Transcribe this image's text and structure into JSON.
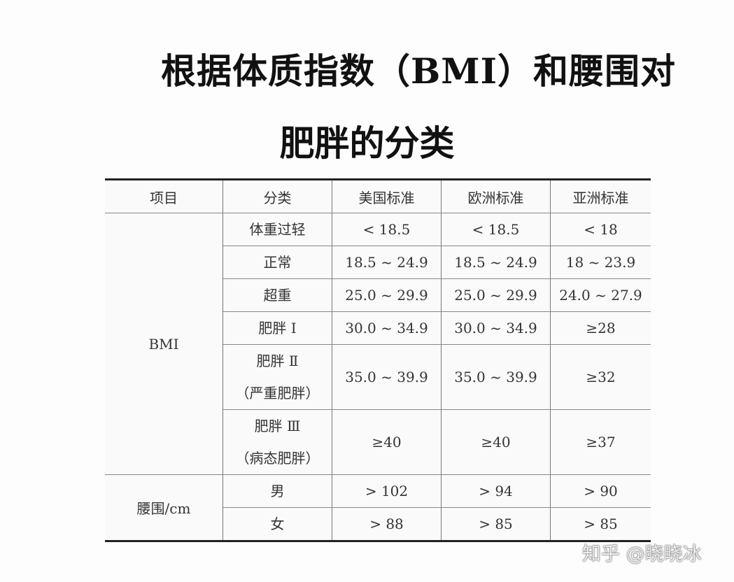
{
  "title": [
    "根据体质指数（BMI）和腰围对",
    "肥胖的分类"
  ],
  "table": {
    "header": [
      "项目",
      "分类",
      "美国标准",
      "欧洲标准",
      "亚洲标准"
    ],
    "groups": [
      {
        "name": "BMI",
        "rows": [
          {
            "category": [
              "体重过轻"
            ],
            "values": [
              "< 18.5",
              "< 18.5",
              "< 18"
            ]
          },
          {
            "category": [
              "正常"
            ],
            "values": [
              "18.5 ~ 24.9",
              "18.5 ~ 24.9",
              "18 ~ 23.9"
            ]
          },
          {
            "category": [
              "超重"
            ],
            "values": [
              "25.0 ~ 29.9",
              "25.0 ~ 29.9",
              "24.0 ~ 27.9"
            ]
          },
          {
            "category": [
              "肥胖 Ⅰ"
            ],
            "values": [
              "30.0 ~ 34.9",
              "30.0 ~ 34.9",
              "≥28"
            ]
          },
          {
            "category": [
              "肥胖 Ⅱ",
              "（严重肥胖）"
            ],
            "values": [
              "35.0 ~ 39.9",
              "35.0 ~ 39.9",
              "≥32"
            ]
          },
          {
            "category": [
              "肥胖 Ⅲ",
              "（病态肥胖）"
            ],
            "values": [
              "≥40",
              "≥40",
              "≥37"
            ]
          }
        ]
      },
      {
        "name": "腰围/cm",
        "rows": [
          {
            "category": [
              "男"
            ],
            "values": [
              "> 102",
              "> 94",
              "> 90"
            ]
          },
          {
            "category": [
              "女"
            ],
            "values": [
              "> 88",
              "> 85",
              "> 85"
            ]
          }
        ]
      }
    ]
  },
  "watermark": "知乎 @晓晓冰"
}
